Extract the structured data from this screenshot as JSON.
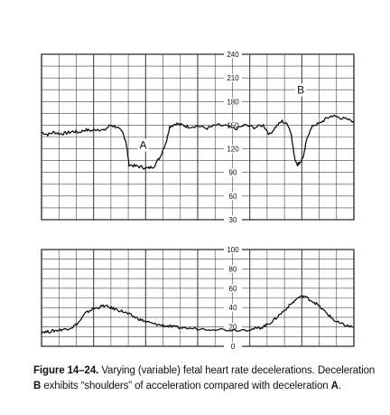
{
  "caption": {
    "figure_label": "Figure 14–24.",
    "text_1": "Varying (variable) fetal heart rate decelerations. Deceleration",
    "label_b": "B",
    "text_2": "exhibits “shoulders” of acceleration compared with deceleration",
    "label_a": "A",
    "text_end": "."
  },
  "chart_data": [
    {
      "type": "line",
      "panel": "fetal-heart-rate",
      "ylim": [
        30,
        240
      ],
      "yticks": [
        "240",
        "210",
        "180",
        "150",
        "120",
        "90",
        "60",
        "30"
      ],
      "grid": true,
      "annotations": [
        {
          "text": "A",
          "x": 0.325,
          "y": 120
        },
        {
          "text": "B",
          "x": 0.83,
          "y": 190
        }
      ],
      "x": [
        0,
        0.02,
        0.04,
        0.06,
        0.08,
        0.1,
        0.12,
        0.14,
        0.16,
        0.18,
        0.2,
        0.22,
        0.24,
        0.26,
        0.27,
        0.28,
        0.3,
        0.32,
        0.34,
        0.36,
        0.38,
        0.4,
        0.41,
        0.43,
        0.45,
        0.47,
        0.5,
        0.53,
        0.56,
        0.59,
        0.62,
        0.65,
        0.68,
        0.71,
        0.73,
        0.75,
        0.77,
        0.79,
        0.8,
        0.81,
        0.82,
        0.83,
        0.84,
        0.85,
        0.87,
        0.89,
        0.91,
        0.93,
        0.95,
        0.97,
        1.0
      ],
      "values": [
        141,
        138,
        141,
        139,
        140,
        142,
        141,
        144,
        143,
        145,
        143,
        150,
        148,
        140,
        130,
        100,
        98,
        97,
        95,
        98,
        110,
        130,
        148,
        152,
        150,
        148,
        149,
        146,
        150,
        149,
        145,
        150,
        147,
        150,
        138,
        148,
        155,
        150,
        138,
        108,
        100,
        104,
        112,
        135,
        150,
        152,
        158,
        162,
        160,
        158,
        155
      ]
    },
    {
      "type": "line",
      "panel": "uterine-contractions",
      "ylim": [
        0,
        100
      ],
      "yticks": [
        "100",
        "80",
        "60",
        "40",
        "20",
        "0"
      ],
      "grid": true,
      "x": [
        0,
        0.02,
        0.04,
        0.06,
        0.08,
        0.1,
        0.12,
        0.14,
        0.16,
        0.18,
        0.2,
        0.22,
        0.24,
        0.26,
        0.28,
        0.3,
        0.32,
        0.34,
        0.36,
        0.38,
        0.4,
        0.42,
        0.45,
        0.5,
        0.55,
        0.6,
        0.65,
        0.68,
        0.7,
        0.72,
        0.74,
        0.76,
        0.78,
        0.8,
        0.82,
        0.84,
        0.86,
        0.88,
        0.9,
        0.92,
        0.94,
        0.96,
        0.98,
        1.0
      ],
      "values": [
        15,
        15,
        16,
        17,
        18,
        20,
        25,
        34,
        38,
        40,
        42,
        40,
        38,
        36,
        33,
        30,
        27,
        25,
        23,
        22,
        21,
        20,
        19,
        18,
        18,
        17,
        17,
        18,
        19,
        22,
        26,
        32,
        38,
        44,
        50,
        52,
        48,
        44,
        38,
        32,
        26,
        23,
        21,
        20
      ]
    }
  ]
}
